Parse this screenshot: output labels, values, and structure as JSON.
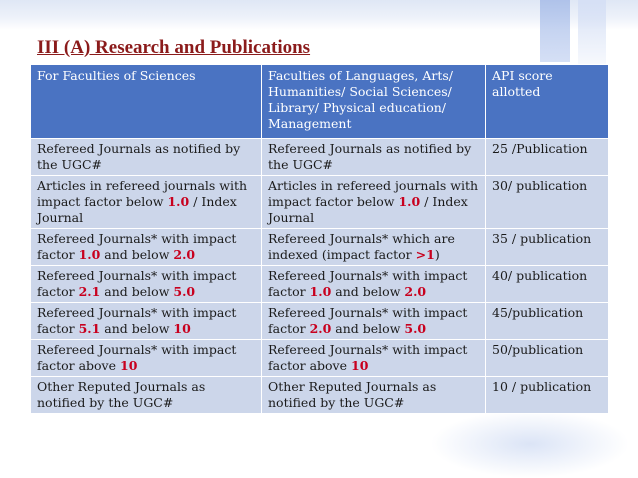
{
  "title": "III (A) Research and Publications",
  "colors": {
    "title": "#8b1b1b",
    "header_bg": "#4a73c2",
    "cell_bg": "#ccd6ea",
    "highlight": "#c8001e"
  },
  "table": {
    "headers": [
      "For Faculties of Sciences",
      "Faculties of Languages, Arts/ Humanities/ Social Sciences/ Library/ Physical education/ Management",
      "API score allotted"
    ],
    "rows": [
      {
        "sciences": [
          "Refereed Journals as notified by the UGC#"
        ],
        "languages": [
          "Refereed Journals as notified by the UGC#"
        ],
        "score": "25 /Publication"
      },
      {
        "sciences": [
          "Articles in refereed journals with impact factor below ",
          "1.0",
          " / Index Journal"
        ],
        "languages": [
          "Articles in refereed journals with impact factor below ",
          "1.0",
          " / Index Journal"
        ],
        "score": "30/ publication"
      },
      {
        "sciences": [
          "Refereed Journals* with impact factor ",
          "1.0",
          " and below ",
          "2.0"
        ],
        "languages": [
          "Refereed Journals* which are indexed (impact factor ",
          ">1",
          ")"
        ],
        "score": "35 / publication"
      },
      {
        "sciences": [
          "Refereed Journals* with impact factor ",
          "2.1",
          " and below ",
          "5.0"
        ],
        "languages": [
          "Refereed Journals* with impact factor ",
          "1.0",
          " and below ",
          "2.0"
        ],
        "score": "40/ publication"
      },
      {
        "sciences": [
          "Refereed Journals* with impact factor ",
          "5.1",
          " and below ",
          "10"
        ],
        "languages": [
          "Refereed Journals* with impact factor ",
          "2.0",
          " and below ",
          "5.0"
        ],
        "score": "45/publication"
      },
      {
        "sciences": [
          "Refereed Journals* with impact factor above ",
          "10"
        ],
        "languages": [
          "Refereed Journals* with impact factor above ",
          "10"
        ],
        "score": "50/publication"
      },
      {
        "sciences": [
          "Other Reputed Journals as notified by the UGC#"
        ],
        "languages": [
          "Other Reputed Journals as notified by the UGC#"
        ],
        "score": "10 / publication"
      }
    ]
  }
}
